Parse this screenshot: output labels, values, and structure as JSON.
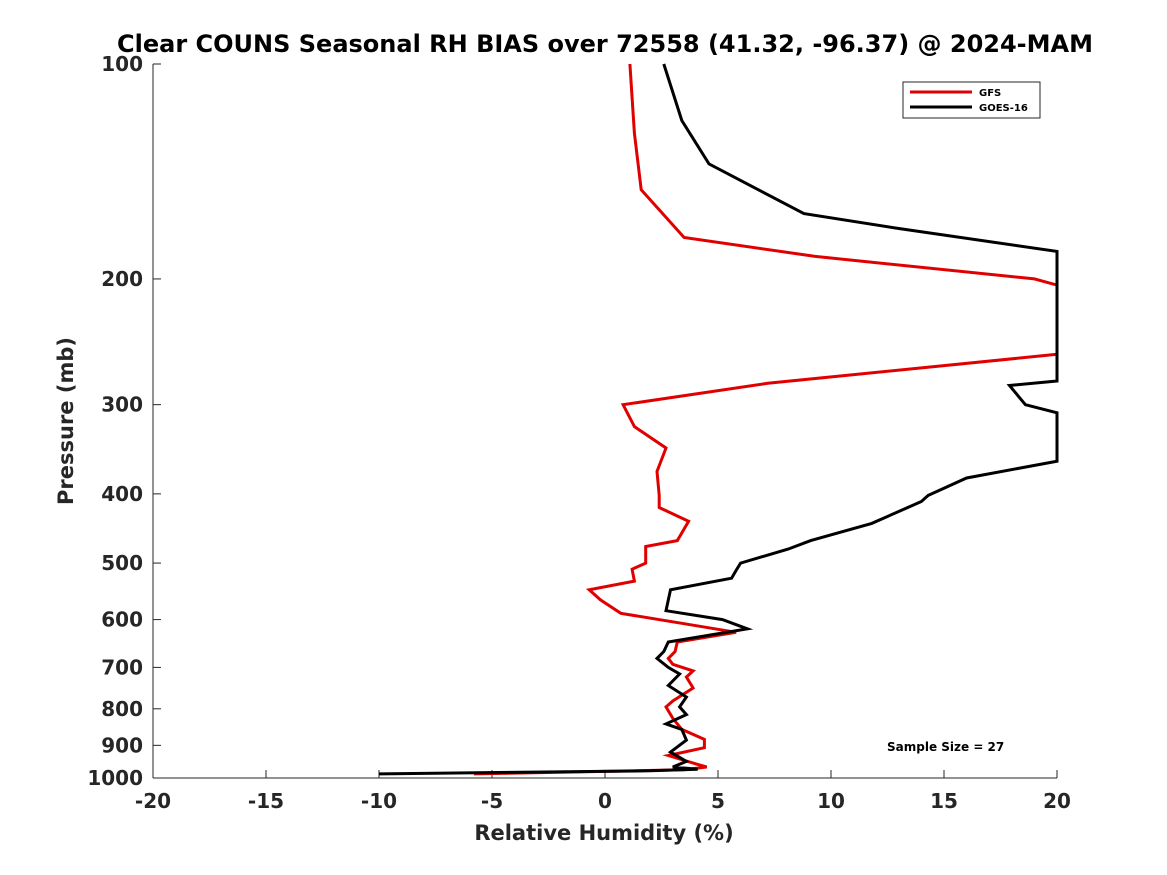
{
  "chart_data": {
    "type": "line",
    "title": "Clear COUNS Seasonal RH BIAS over 72558 (41.32, -96.37) @ 2024-MAM",
    "xlabel": "Relative Humidity (%)",
    "ylabel": "Pressure (mb)",
    "xlim": [
      -20,
      20
    ],
    "ylim": [
      1000,
      100
    ],
    "y_scale": "log",
    "x_ticks": [
      "-20",
      "-15",
      "-10",
      "-5",
      "0",
      "5",
      "10",
      "15",
      "20"
    ],
    "y_ticks": [
      "100",
      "200",
      "300",
      "400",
      "500",
      "600",
      "700",
      "800",
      "900",
      "1000"
    ],
    "grid": false,
    "legend_position": "top-right",
    "annotation": "Sample Size = 27",
    "series": [
      {
        "name": "GFS",
        "color": "#e00000",
        "points": [
          [
            1.1,
            100
          ],
          [
            1.3,
            125
          ],
          [
            1.6,
            150
          ],
          [
            3.5,
            175
          ],
          [
            9.3,
            186
          ],
          [
            19.0,
            200
          ],
          [
            20.0,
            204
          ],
          [
            20.0,
            255
          ],
          [
            7.2,
            280
          ],
          [
            0.8,
            300
          ],
          [
            1.3,
            322
          ],
          [
            2.7,
            345
          ],
          [
            2.3,
            372
          ],
          [
            2.4,
            402
          ],
          [
            2.4,
            418
          ],
          [
            3.7,
            437
          ],
          [
            3.2,
            465
          ],
          [
            1.8,
            474
          ],
          [
            1.8,
            500
          ],
          [
            1.2,
            510
          ],
          [
            1.3,
            530
          ],
          [
            -0.7,
            545
          ],
          [
            -0.2,
            563
          ],
          [
            0.7,
            588
          ],
          [
            3.5,
            608
          ],
          [
            5.8,
            625
          ],
          [
            3.2,
            645
          ],
          [
            3.1,
            665
          ],
          [
            2.8,
            680
          ],
          [
            3.0,
            693
          ],
          [
            3.9,
            708
          ],
          [
            3.6,
            722
          ],
          [
            3.9,
            748
          ],
          [
            3.0,
            780
          ],
          [
            2.7,
            795
          ],
          [
            3.0,
            825
          ],
          [
            3.4,
            855
          ],
          [
            4.4,
            883
          ],
          [
            4.4,
            907
          ],
          [
            2.8,
            930
          ],
          [
            4.1,
            957
          ],
          [
            4.5,
            965
          ],
          [
            3.5,
            974
          ],
          [
            -5.8,
            987
          ]
        ]
      },
      {
        "name": "GOES-16",
        "color": "#000000",
        "points": [
          [
            2.6,
            100
          ],
          [
            3.4,
            120
          ],
          [
            4.6,
            138
          ],
          [
            8.8,
            162
          ],
          [
            13.0,
            170
          ],
          [
            20.0,
            183
          ],
          [
            20.0,
            278
          ],
          [
            17.9,
            282
          ],
          [
            18.6,
            300
          ],
          [
            20.0,
            308
          ],
          [
            20.0,
            360
          ],
          [
            16.0,
            380
          ],
          [
            14.3,
            402
          ],
          [
            14.0,
            410
          ],
          [
            11.8,
            440
          ],
          [
            9.1,
            465
          ],
          [
            8.1,
            478
          ],
          [
            6.0,
            500
          ],
          [
            5.8,
            512
          ],
          [
            5.6,
            525
          ],
          [
            2.9,
            545
          ],
          [
            2.7,
            583
          ],
          [
            5.2,
            600
          ],
          [
            6.3,
            618
          ],
          [
            2.8,
            645
          ],
          [
            2.6,
            665
          ],
          [
            2.3,
            680
          ],
          [
            2.8,
            700
          ],
          [
            3.3,
            715
          ],
          [
            2.8,
            742
          ],
          [
            3.6,
            770
          ],
          [
            3.3,
            795
          ],
          [
            3.6,
            815
          ],
          [
            2.7,
            840
          ],
          [
            3.4,
            855
          ],
          [
            3.6,
            885
          ],
          [
            2.9,
            920
          ],
          [
            3.6,
            948
          ],
          [
            3.0,
            965
          ],
          [
            4.1,
            972
          ],
          [
            2.0,
            977
          ],
          [
            -10.0,
            987
          ]
        ]
      }
    ]
  }
}
